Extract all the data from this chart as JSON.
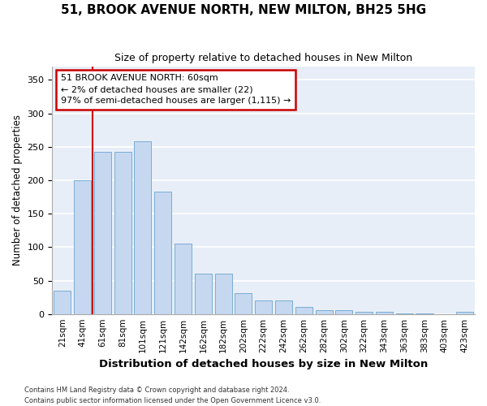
{
  "title1": "51, BROOK AVENUE NORTH, NEW MILTON, BH25 5HG",
  "title2": "Size of property relative to detached houses in New Milton",
  "xlabel": "Distribution of detached houses by size in New Milton",
  "ylabel": "Number of detached properties",
  "categories": [
    "21sqm",
    "41sqm",
    "61sqm",
    "81sqm",
    "101sqm",
    "121sqm",
    "142sqm",
    "162sqm",
    "182sqm",
    "202sqm",
    "222sqm",
    "242sqm",
    "262sqm",
    "282sqm",
    "302sqm",
    "322sqm",
    "343sqm",
    "363sqm",
    "383sqm",
    "403sqm",
    "423sqm"
  ],
  "values": [
    35,
    200,
    243,
    243,
    258,
    183,
    105,
    60,
    60,
    31,
    20,
    20,
    10,
    6,
    6,
    3,
    3,
    1,
    1,
    0,
    3
  ],
  "bar_color": "#c5d8f0",
  "bar_edge_color": "#7aadd4",
  "vline_index": 2,
  "vline_color": "#cc0000",
  "annotation_line1": "51 BROOK AVENUE NORTH: 60sqm",
  "annotation_line2": "← 2% of detached houses are smaller (22)",
  "annotation_line3": "97% of semi-detached houses are larger (1,115) →",
  "annotation_box_color": "#ffffff",
  "annotation_border_color": "#cc0000",
  "ylim": [
    0,
    370
  ],
  "yticks": [
    0,
    50,
    100,
    150,
    200,
    250,
    300,
    350
  ],
  "background_color": "#e8eef8",
  "grid_color": "#ffffff",
  "fig_bg_color": "#ffffff",
  "footnote": "Contains HM Land Registry data © Crown copyright and database right 2024.\nContains public sector information licensed under the Open Government Licence v3.0."
}
